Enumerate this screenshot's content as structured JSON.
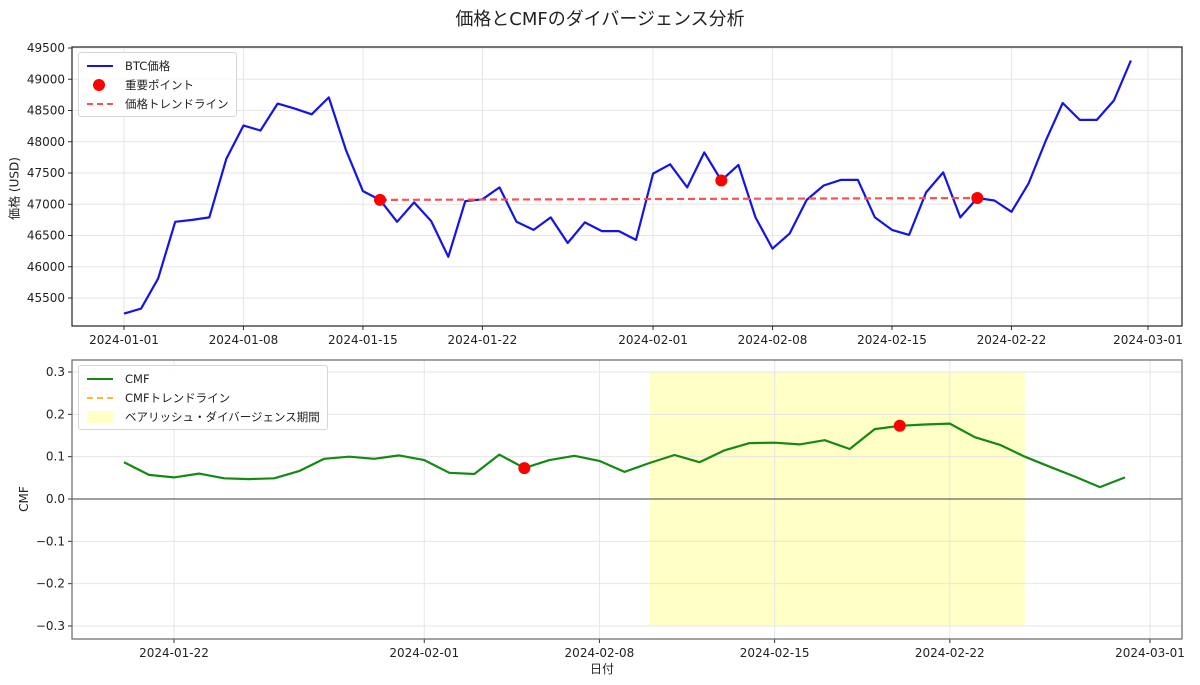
{
  "figure": {
    "title": "価格とCMFのダイバージェンス分析"
  },
  "colors": {
    "price_line": "#1414e6",
    "key_point": "#ff0000",
    "price_trend": "#ff5050",
    "cmf_line": "#138a13",
    "cmf_trend": "#ffb833",
    "divergence_fill": "#ffffc6",
    "grid": "#e6e6e6",
    "zero_line": "#666666"
  },
  "top_panel": {
    "ylabel": "価格 (USD)",
    "legend": [
      {
        "label": "BTC価格",
        "type": "line"
      },
      {
        "label": "重要ポイント",
        "type": "dot"
      },
      {
        "label": "価格トレンドライン",
        "type": "dash"
      }
    ]
  },
  "bottom_panel": {
    "ylabel": "CMF",
    "xlabel": "日付",
    "legend": [
      {
        "label": "CMF",
        "type": "line"
      },
      {
        "label": "CMFトレンドライン",
        "type": "dash"
      },
      {
        "label": "ベアリッシュ・ダイバージェンス期間",
        "type": "patch"
      }
    ]
  },
  "chart_data": [
    {
      "type": "line",
      "title": "価格とCMFのダイバージェンス分析",
      "xlabel": "",
      "ylabel": "価格 (USD)",
      "ylim": [
        45000,
        49600
      ],
      "yticks": [
        45500,
        46000,
        46500,
        47000,
        47500,
        48000,
        48500,
        49000,
        49500
      ],
      "xticks": [
        "2024-01-01",
        "2024-01-08",
        "2024-01-15",
        "2024-01-22",
        "2024-02-01",
        "2024-02-08",
        "2024-02-15",
        "2024-02-22",
        "2024-03-01"
      ],
      "grid": true,
      "legend_position": "upper left",
      "x_start": "2024-01-01",
      "series": [
        {
          "name": "BTC価格",
          "style": "line",
          "values": [
            45250,
            45330,
            45810,
            46720,
            46750,
            46790,
            47730,
            48260,
            48180,
            48610,
            48530,
            48440,
            48710,
            47870,
            47210,
            47070,
            46720,
            47030,
            46730,
            46160,
            47050,
            47080,
            47270,
            46720,
            46590,
            46790,
            46380,
            46710,
            46570,
            46570,
            46430,
            47490,
            47640,
            47270,
            47830,
            47380,
            47630,
            46790,
            46290,
            46530,
            47070,
            47300,
            47390,
            47390,
            46790,
            46590,
            46510,
            47190,
            47510,
            46790,
            47100,
            47060,
            46880,
            47330,
            48010,
            48620,
            48350,
            48350,
            48660,
            49300
          ]
        },
        {
          "name": "重要ポイント",
          "style": "scatter",
          "points": [
            {
              "x": "2024-01-16",
              "y": 47070
            },
            {
              "x": "2024-02-05",
              "y": 47380
            },
            {
              "x": "2024-02-20",
              "y": 47100
            }
          ]
        },
        {
          "name": "価格トレンドライン",
          "style": "dashed",
          "points": [
            {
              "x": "2024-01-16",
              "y": 47070
            },
            {
              "x": "2024-02-20",
              "y": 47100
            }
          ]
        }
      ]
    },
    {
      "type": "line",
      "xlabel": "日付",
      "ylabel": "CMF",
      "ylim": [
        -0.33,
        0.32
      ],
      "yticks": [
        -0.3,
        -0.2,
        -0.1,
        0.0,
        0.1,
        0.2,
        0.3
      ],
      "xticks": [
        "2024-01-22",
        "2024-02-01",
        "2024-02-08",
        "2024-02-15",
        "2024-02-22",
        "2024-03-01"
      ],
      "grid": true,
      "legend_position": "upper left",
      "x_start": "2024-01-20",
      "series": [
        {
          "name": "CMF",
          "style": "line",
          "values": [
            0.087,
            0.057,
            0.051,
            0.06,
            0.049,
            0.047,
            0.049,
            0.066,
            0.095,
            0.1,
            0.095,
            0.103,
            0.092,
            0.062,
            0.059,
            0.105,
            0.073,
            0.092,
            0.102,
            0.09,
            0.064,
            0.085,
            0.104,
            0.087,
            0.115,
            0.132,
            0.133,
            0.129,
            0.139,
            0.118,
            0.165,
            0.173,
            0.176,
            0.178,
            0.146,
            0.128,
            0.1,
            0.076,
            0.053,
            0.028,
            0.051
          ]
        },
        {
          "name": "重要ポイント",
          "style": "scatter",
          "points": [
            {
              "x": "2024-02-05",
              "y": 0.073
            },
            {
              "x": "2024-02-20",
              "y": 0.173
            }
          ]
        },
        {
          "name": "CMFトレンドライン",
          "style": "dashed",
          "points": []
        }
      ],
      "shaded_regions": [
        {
          "name": "ベアリッシュ・ダイバージェンス期間",
          "x_start": "2024-02-10",
          "x_end": "2024-02-25",
          "y_start": -0.3,
          "y_end": 0.3
        }
      ],
      "hlines": [
        0.0
      ]
    }
  ]
}
